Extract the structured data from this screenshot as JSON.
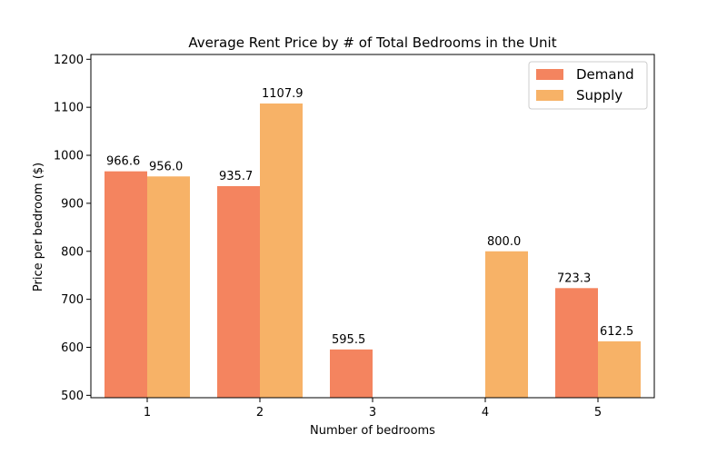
{
  "chart_data": {
    "type": "bar",
    "title": "Average Rent Price by # of Total Bedrooms in the Unit",
    "xlabel": "Number of bedrooms",
    "ylabel": "Price per bedroom ($)",
    "categories": [
      "1",
      "2",
      "3",
      "4",
      "5"
    ],
    "ylim": [
      495,
      1210
    ],
    "yticks": [
      500,
      600,
      700,
      800,
      900,
      1000,
      1100,
      1200
    ],
    "grid": false,
    "legend_position": "top-right",
    "series": [
      {
        "name": "Demand",
        "color": "#f4845f",
        "values": [
          966.6,
          935.7,
          595.5,
          null,
          723.3
        ],
        "labels": [
          "966.6",
          "935.7",
          "595.5",
          "",
          "723.3"
        ]
      },
      {
        "name": "Supply",
        "color": "#f7b267",
        "values": [
          956.0,
          1107.9,
          null,
          800.0,
          612.5
        ],
        "labels": [
          "956.0",
          "1107.9",
          "",
          "800.0",
          "612.5"
        ]
      }
    ]
  }
}
